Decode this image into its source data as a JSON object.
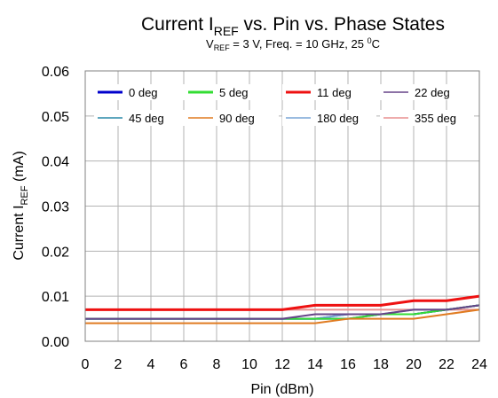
{
  "chart_data": {
    "type": "line",
    "title_main": "Current I",
    "title_sub": "REF",
    "title_rest": " vs. Pin vs. Phase States",
    "subtitle_v": "V",
    "subtitle_sub": "REF",
    "subtitle_mid": " = 3 V, Freq. = 10 GHz, 25 ",
    "subtitle_sup": "0",
    "subtitle_end": "C",
    "xlabel": "Pin (dBm)",
    "ylabel_main": "Current I",
    "ylabel_sub": "REF",
    "ylabel_end": " (mA)",
    "xlim": [
      0,
      24
    ],
    "ylim": [
      0,
      0.06
    ],
    "x_ticks": [
      "0",
      "2",
      "4",
      "6",
      "8",
      "10",
      "12",
      "14",
      "16",
      "18",
      "20",
      "22",
      "24"
    ],
    "y_ticks": [
      "0.00",
      "0.01",
      "0.02",
      "0.03",
      "0.04",
      "0.05",
      "0.06"
    ],
    "grid": true,
    "legend_position": "top",
    "x": [
      0,
      2,
      4,
      6,
      8,
      10,
      12,
      14,
      16,
      18,
      20,
      22,
      24
    ],
    "series": [
      {
        "name": "0 deg",
        "color": "#0000cc",
        "values": [
          0.005,
          0.005,
          0.005,
          0.005,
          0.005,
          0.005,
          0.005,
          0.005,
          0.005,
          0.006,
          0.006,
          0.007,
          0.008
        ]
      },
      {
        "name": "5 deg",
        "color": "#33dd33",
        "values": [
          0.005,
          0.005,
          0.005,
          0.005,
          0.005,
          0.005,
          0.005,
          0.005,
          0.005,
          0.006,
          0.006,
          0.007,
          0.008
        ]
      },
      {
        "name": "11 deg",
        "color": "#ee1111",
        "values": [
          0.007,
          0.007,
          0.007,
          0.007,
          0.007,
          0.007,
          0.007,
          0.008,
          0.008,
          0.008,
          0.009,
          0.009,
          0.01
        ]
      },
      {
        "name": "22 deg",
        "color": "#664488",
        "values": [
          0.005,
          0.005,
          0.005,
          0.005,
          0.005,
          0.005,
          0.005,
          0.006,
          0.006,
          0.006,
          0.007,
          0.007,
          0.008
        ]
      },
      {
        "name": "45 deg",
        "color": "#2a8aa8",
        "values": [
          0.005,
          0.005,
          0.005,
          0.005,
          0.005,
          0.005,
          0.005,
          0.005,
          0.006,
          0.006,
          0.006,
          0.007,
          0.008
        ]
      },
      {
        "name": "90 deg",
        "color": "#e07b20",
        "values": [
          0.004,
          0.004,
          0.004,
          0.004,
          0.004,
          0.004,
          0.004,
          0.004,
          0.005,
          0.005,
          0.005,
          0.006,
          0.007
        ]
      },
      {
        "name": "180 deg",
        "color": "#7aa6d6",
        "values": [
          0.005,
          0.005,
          0.005,
          0.005,
          0.005,
          0.005,
          0.005,
          0.005,
          0.006,
          0.006,
          0.007,
          0.007,
          0.008
        ]
      },
      {
        "name": "355 deg",
        "color": "#e89090",
        "values": [
          0.007,
          0.007,
          0.007,
          0.007,
          0.007,
          0.007,
          0.007,
          0.007,
          0.007,
          0.007,
          0.007,
          0.007,
          0.007
        ]
      }
    ]
  }
}
